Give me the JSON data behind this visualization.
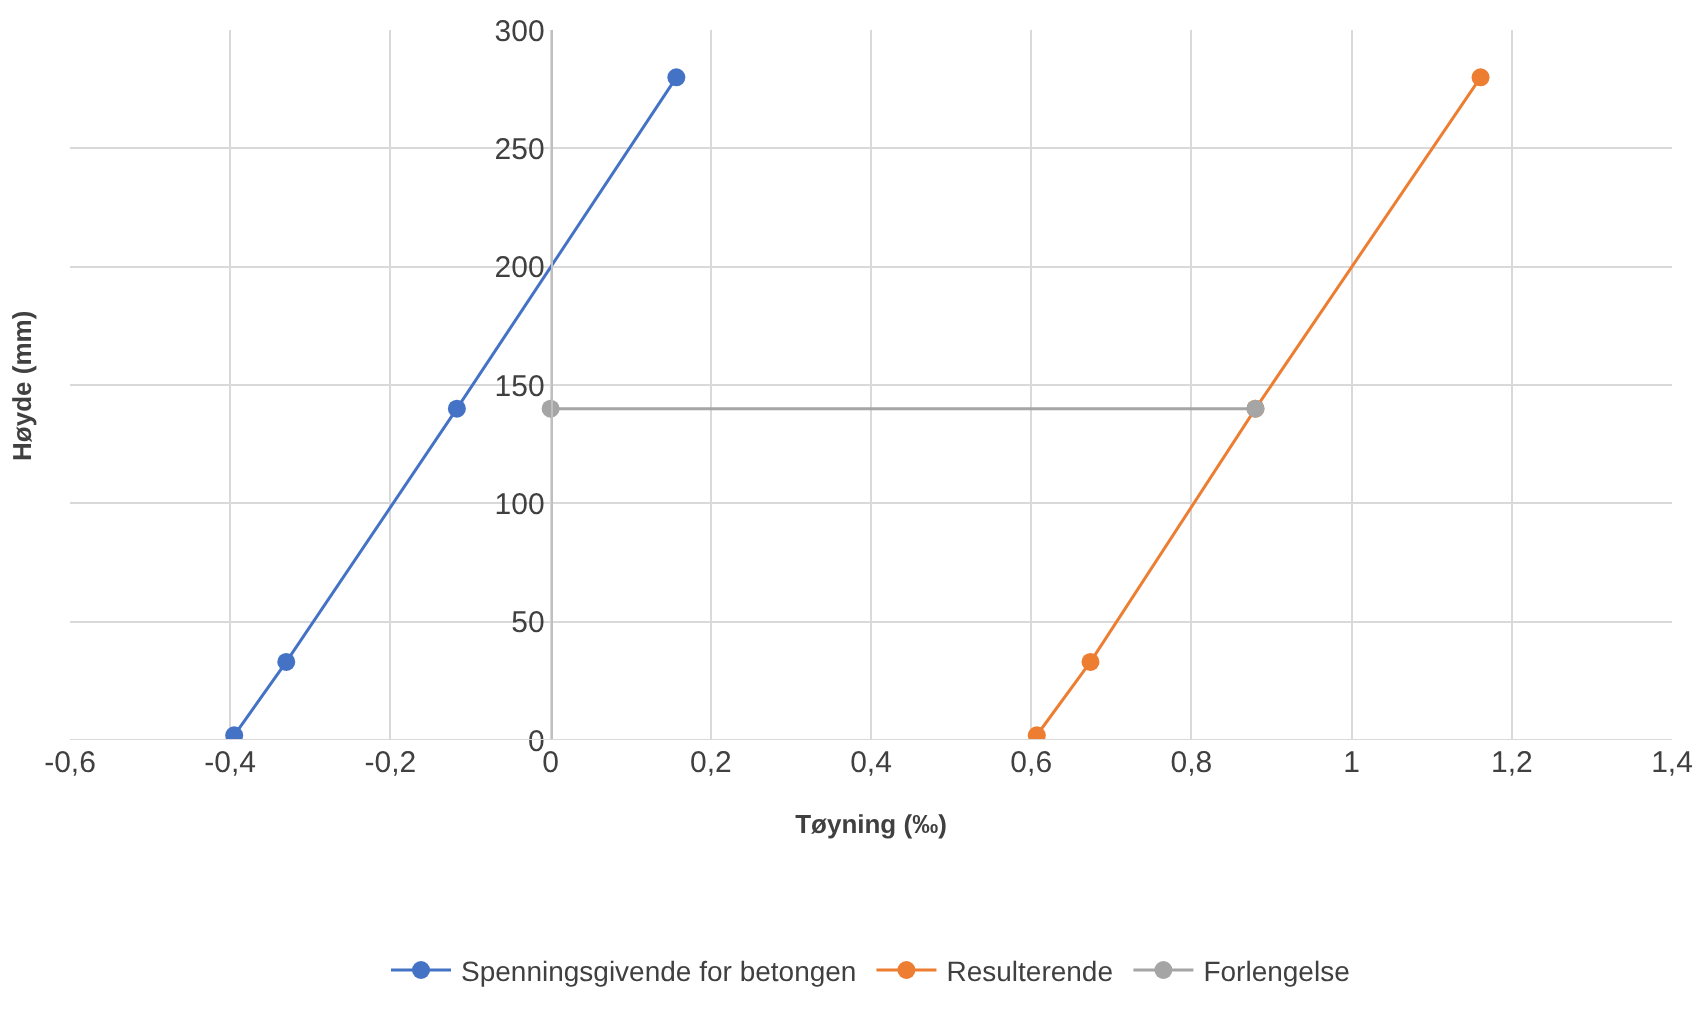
{
  "chart_data": {
    "type": "line",
    "xlabel": "Tøyning (‰)",
    "ylabel": "Høyde (mm)",
    "xlim": [
      -0.6,
      1.4
    ],
    "xticks": [
      {
        "value": -0.6,
        "label": "-0,6"
      },
      {
        "value": -0.4,
        "label": "-0,4"
      },
      {
        "value": -0.2,
        "label": "-0,2"
      },
      0,
      {
        "value": 0.2,
        "label": "0,2"
      },
      {
        "value": 0.4,
        "label": "0,4"
      },
      {
        "value": 0.6,
        "label": "0,6"
      },
      {
        "value": 0.8,
        "label": "0,8"
      },
      1,
      {
        "value": 1.2,
        "label": "1,2"
      },
      {
        "value": 1.4,
        "label": "1,4"
      }
    ],
    "ylim": [
      0,
      300
    ],
    "yticks": [
      0,
      50,
      100,
      150,
      200,
      250,
      300
    ],
    "grid": true,
    "legend": "bottom",
    "marker": "circle",
    "line_style": "solid",
    "series": [
      {
        "name": "Spenningsgivende for betongen",
        "color": "#4472c4",
        "x": [
          -0.395,
          -0.33,
          -0.117,
          0.157
        ],
        "values": [
          2,
          33,
          140,
          280
        ]
      },
      {
        "name": "Resulterende",
        "color": "#ed7d31",
        "x": [
          0.607,
          0.674,
          0.88,
          1.161
        ],
        "values": [
          2,
          33,
          140,
          280
        ]
      },
      {
        "name": "Forlengelse",
        "color": "#a5a5a5",
        "x": [
          0,
          0.88
        ],
        "values": [
          140,
          140
        ]
      }
    ]
  }
}
